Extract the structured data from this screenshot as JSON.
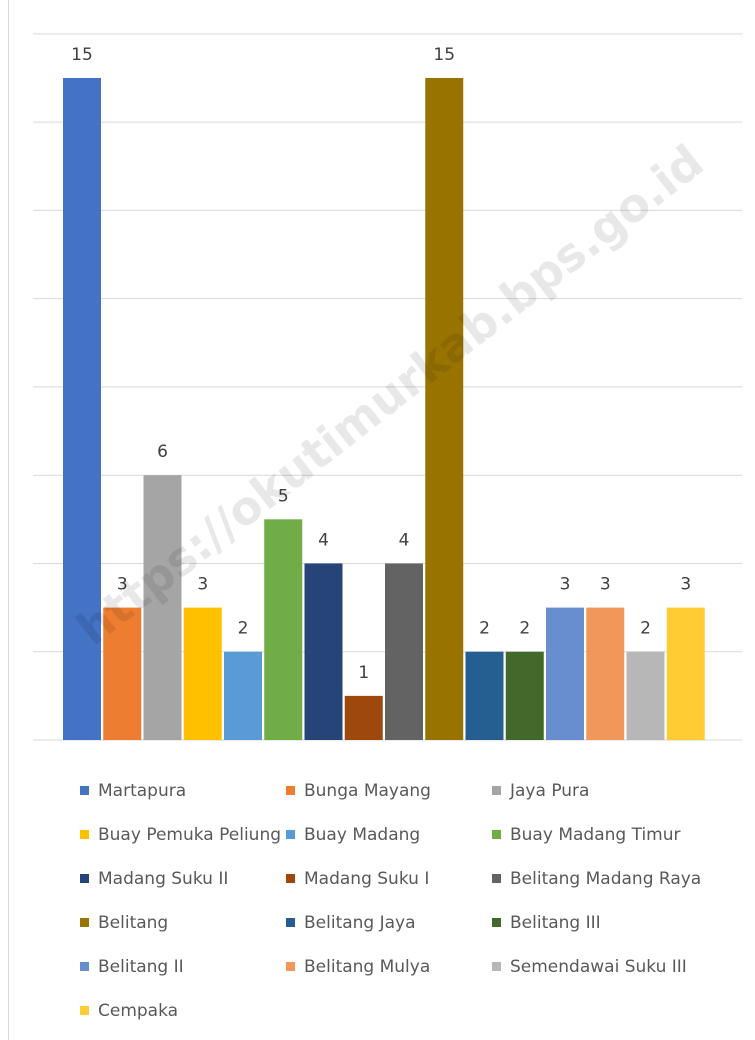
{
  "watermark": "https://okutimurkab.bps.go.id",
  "chart_data": {
    "type": "bar",
    "title": "",
    "xlabel": "",
    "ylabel": "",
    "ylim": [
      0,
      15
    ],
    "grid": true,
    "legend_position": "bottom",
    "categories": [
      "Martapura",
      "Bunga Mayang",
      "Jaya Pura",
      "Buay Pemuka Peliung",
      "Buay Madang",
      "Buay Madang Timur",
      "Madang Suku II",
      "Madang Suku I",
      "Belitang Madang Raya",
      "Belitang",
      "Belitang Jaya",
      "Belitang III",
      "Belitang II",
      "Belitang Mulya",
      "Semendawai Suku III",
      "Cempaka"
    ],
    "values": [
      15,
      3,
      6,
      3,
      2,
      5,
      4,
      1,
      4,
      15,
      2,
      2,
      3,
      3,
      2,
      3
    ],
    "colors": [
      "#4472C4",
      "#ED7D31",
      "#A5A5A5",
      "#FFC000",
      "#5B9BD5",
      "#70AD47",
      "#264478",
      "#9E480E",
      "#636363",
      "#997300",
      "#255E91",
      "#43682B",
      "#698ED0",
      "#F1975A",
      "#B7B7B7",
      "#FFCD33"
    ],
    "data_labels": [
      "15",
      "3",
      "6",
      "3",
      "2",
      "5",
      "4",
      "1",
      "4",
      "15",
      "2",
      "2",
      "3",
      "3",
      "2",
      "3"
    ]
  }
}
